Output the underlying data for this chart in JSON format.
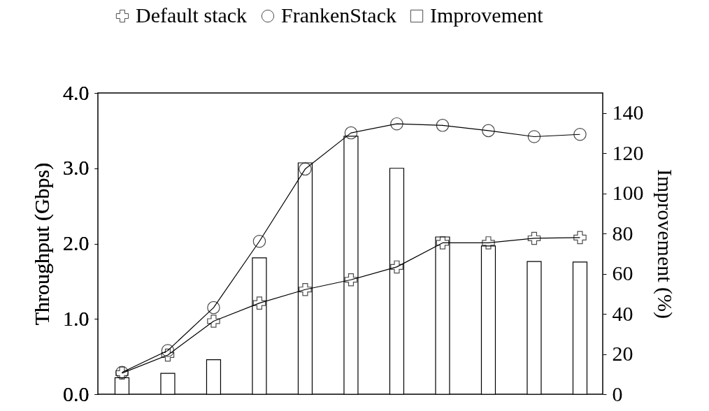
{
  "chart_data": {
    "type": "line",
    "categories": [
      null,
      null,
      null,
      null,
      null,
      null,
      null,
      null,
      null,
      null,
      null
    ],
    "series": [
      {
        "name": "Default stack",
        "marker": "cross",
        "color": "#000000",
        "values": [
          0.28,
          0.52,
          0.97,
          1.21,
          1.39,
          1.52,
          1.69,
          2.01,
          2.01,
          2.07,
          2.08
        ]
      },
      {
        "name": "FrankenStack",
        "marker": "circle",
        "color": "#000000",
        "values": [
          0.29,
          0.58,
          1.15,
          2.03,
          2.99,
          3.47,
          3.59,
          3.57,
          3.5,
          3.42,
          3.45
        ]
      },
      {
        "name": "Improvement",
        "type": "bar",
        "axis": "y2",
        "color": "#ffffff",
        "values": [
          8.2,
          10.4,
          17.2,
          67.9,
          115.2,
          128.5,
          112.5,
          78.3,
          73.8,
          66.1,
          65.8
        ]
      }
    ],
    "ylabel": "Throughput (Gbps)",
    "y2label": "Improvement (%)",
    "ylim": [
      0,
      4
    ],
    "yticks": [
      {
        "value": 0,
        "label": "0.0"
      },
      {
        "value": 1,
        "label": "1.0"
      },
      {
        "value": 2,
        "label": "2.0"
      },
      {
        "value": 3,
        "label": "3.0"
      },
      {
        "value": 4,
        "label": "4.0"
      }
    ],
    "y2lim": [
      0,
      150
    ],
    "y2ticks": [
      0,
      20,
      40,
      60,
      80,
      100,
      120,
      140
    ],
    "grid": false,
    "legend": "top",
    "line_style": "solid"
  }
}
